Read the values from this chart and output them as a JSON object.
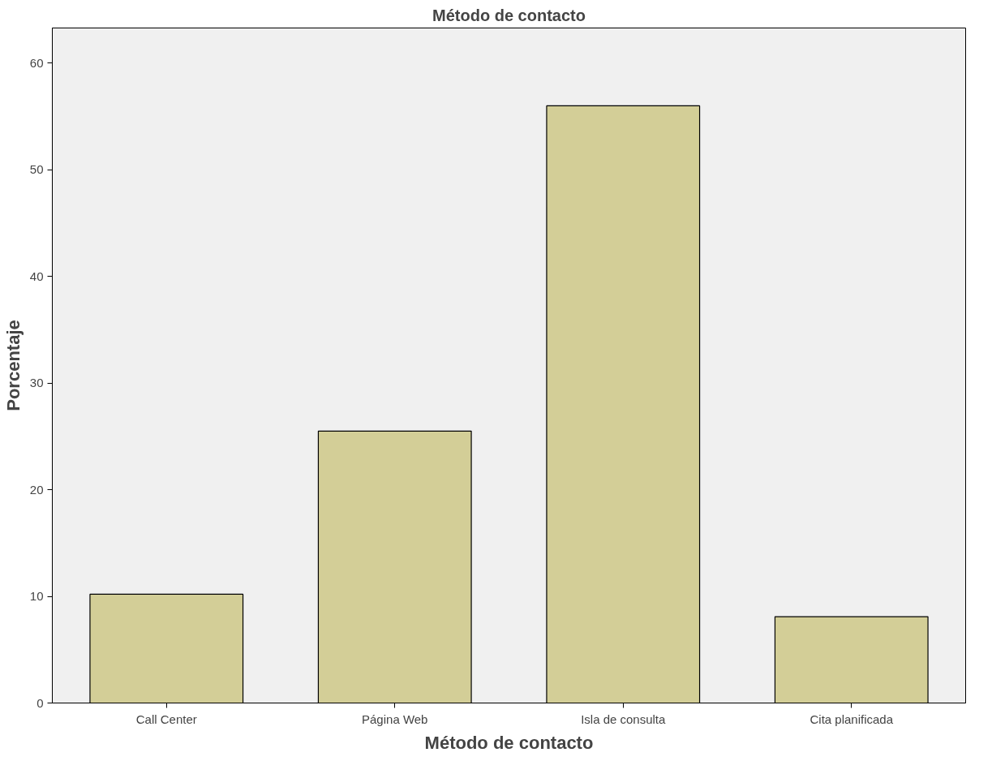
{
  "chart_data": {
    "type": "bar",
    "title": "Método de contacto",
    "xlabel": "Método de contacto",
    "ylabel": "Porcentaje",
    "categories": [
      "Call Center",
      "Página Web",
      "Isla de consulta",
      "Cita planificada"
    ],
    "values": [
      10.2,
      25.5,
      56.0,
      8.1
    ],
    "color": "#d3ce97",
    "ylim": [
      0,
      63.3
    ],
    "yticks": [
      0,
      10,
      20,
      30,
      40,
      50,
      60
    ],
    "grid": false
  }
}
